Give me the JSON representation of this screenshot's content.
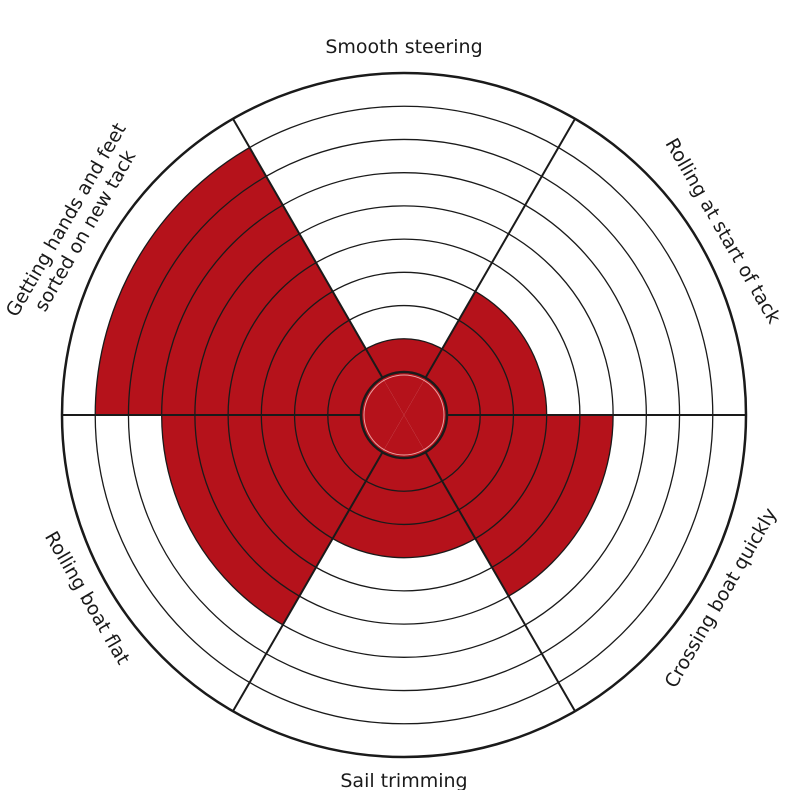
{
  "chart_data": {
    "type": "polar-area",
    "rings": 10,
    "fill_color": "#b5121b",
    "line_color": "#1a1a1a",
    "segments": [
      {
        "label": "Smooth steering",
        "value": 2
      },
      {
        "label": "Rolling at start of tack",
        "value": 4
      },
      {
        "label": "Crossing boat quickly",
        "value": 6
      },
      {
        "label": "Sail trimming",
        "value": 4
      },
      {
        "label": "Rolling boat flat",
        "value": 7
      },
      {
        "label": "Getting hands and feet\nsorted on new tack",
        "value": 9
      }
    ]
  }
}
